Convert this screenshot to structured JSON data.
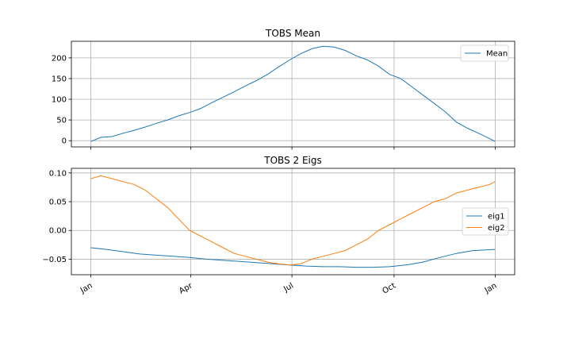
{
  "chart_data": [
    {
      "type": "line",
      "title": "TOBS Mean",
      "xlabel": "",
      "ylabel": "",
      "x_range": [
        1,
        365
      ],
      "ylim": [
        -15,
        240
      ],
      "yticks": [
        0,
        50,
        100,
        150,
        200
      ],
      "xticks": [
        {
          "day": 1,
          "label": "Jan"
        },
        {
          "day": 91,
          "label": "Apr"
        },
        {
          "day": 182,
          "label": "Jul"
        },
        {
          "day": 274,
          "label": "Oct"
        },
        {
          "day": 365,
          "label": "Jan"
        }
      ],
      "grid": true,
      "legend": "upper-right",
      "series": [
        {
          "name": "Mean",
          "color": "#1f77b4",
          "x": [
            1,
            10,
            20,
            30,
            40,
            50,
            60,
            70,
            80,
            90,
            100,
            110,
            120,
            130,
            140,
            150,
            160,
            170,
            180,
            190,
            200,
            210,
            220,
            230,
            240,
            250,
            260,
            270,
            280,
            290,
            300,
            310,
            320,
            330,
            340,
            350,
            360,
            365
          ],
          "values": [
            -2,
            8,
            10,
            18,
            25,
            33,
            42,
            50,
            60,
            68,
            78,
            92,
            105,
            118,
            132,
            145,
            160,
            178,
            195,
            210,
            222,
            228,
            226,
            218,
            205,
            195,
            180,
            160,
            150,
            130,
            110,
            90,
            70,
            45,
            30,
            18,
            5,
            -2
          ]
        }
      ]
    },
    {
      "type": "line",
      "title": "TOBS 2 Eigs",
      "xlabel": "",
      "ylabel": "",
      "x_range": [
        1,
        365
      ],
      "ylim": [
        -0.077,
        0.108
      ],
      "yticks": [
        -0.05,
        0.0,
        0.05,
        0.1
      ],
      "ytick_labels": [
        "−0.05",
        "0.00",
        "0.05",
        "0.10"
      ],
      "xticks": [
        {
          "day": 1,
          "label": "Jan"
        },
        {
          "day": 91,
          "label": "Apr"
        },
        {
          "day": 182,
          "label": "Jul"
        },
        {
          "day": 274,
          "label": "Oct"
        },
        {
          "day": 365,
          "label": "Jan"
        }
      ],
      "grid": true,
      "legend": "center-right",
      "series": [
        {
          "name": "eig1",
          "color": "#1f77b4",
          "x": [
            1,
            15,
            30,
            45,
            60,
            75,
            90,
            105,
            120,
            135,
            150,
            165,
            180,
            195,
            210,
            225,
            240,
            255,
            270,
            285,
            300,
            315,
            330,
            345,
            365
          ],
          "values": [
            -0.03,
            -0.033,
            -0.037,
            -0.041,
            -0.043,
            -0.045,
            -0.047,
            -0.05,
            -0.052,
            -0.054,
            -0.056,
            -0.058,
            -0.06,
            -0.062,
            -0.063,
            -0.063,
            -0.064,
            -0.064,
            -0.063,
            -0.06,
            -0.055,
            -0.047,
            -0.04,
            -0.035,
            -0.033
          ]
        },
        {
          "name": "eig2",
          "color": "#ff7f0e",
          "x": [
            1,
            10,
            20,
            30,
            40,
            50,
            60,
            70,
            80,
            90,
            100,
            110,
            120,
            130,
            140,
            150,
            160,
            170,
            180,
            190,
            200,
            210,
            220,
            230,
            240,
            250,
            260,
            270,
            280,
            290,
            300,
            310,
            320,
            330,
            340,
            350,
            360,
            365
          ],
          "values": [
            0.09,
            0.095,
            0.09,
            0.085,
            0.08,
            0.07,
            0.055,
            0.04,
            0.02,
            0.0,
            -0.01,
            -0.02,
            -0.03,
            -0.04,
            -0.045,
            -0.05,
            -0.055,
            -0.058,
            -0.06,
            -0.058,
            -0.05,
            -0.045,
            -0.04,
            -0.035,
            -0.025,
            -0.015,
            0.0,
            0.01,
            0.02,
            0.03,
            0.04,
            0.05,
            0.055,
            0.065,
            0.07,
            0.075,
            0.08,
            0.085
          ]
        }
      ]
    }
  ]
}
